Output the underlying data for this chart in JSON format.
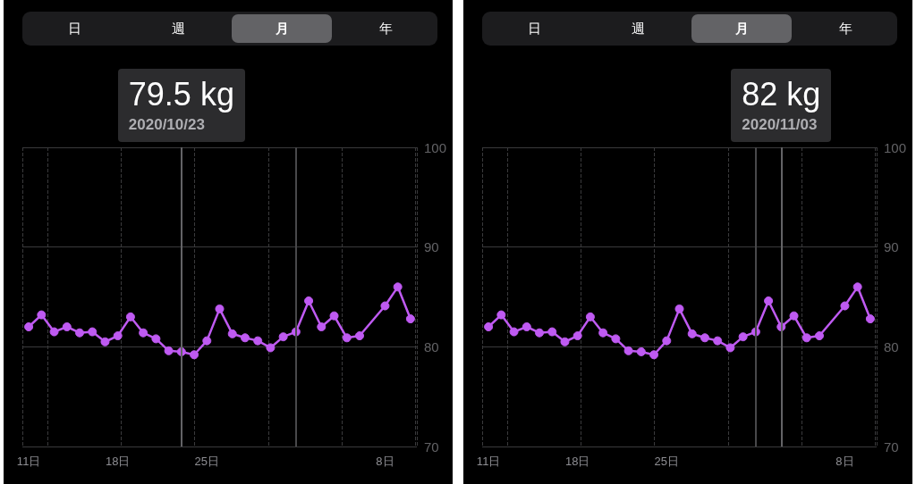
{
  "chart_data": [
    {
      "type": "line",
      "annotations": [
        "日",
        "週",
        "月",
        "年",
        "79.5 kg",
        "2020/10/23"
      ],
      "x": [
        "2020-10-11",
        "2020-10-12",
        "2020-10-13",
        "2020-10-14",
        "2020-10-15",
        "2020-10-16",
        "2020-10-17",
        "2020-10-18",
        "2020-10-19",
        "2020-10-20",
        "2020-10-21",
        "2020-10-22",
        "2020-10-23",
        "2020-10-24",
        "2020-10-25",
        "2020-10-26",
        "2020-10-27",
        "2020-10-28",
        "2020-10-29",
        "2020-10-30",
        "2020-10-31",
        "2020-11-01",
        "2020-11-02",
        "2020-11-03",
        "2020-11-04",
        "2020-11-05",
        "2020-11-06",
        "2020-11-08",
        "2020-11-09",
        "2020-11-10"
      ],
      "series": [
        {
          "color": "#bf5af2",
          "values": [
            82.0,
            83.2,
            81.5,
            82.0,
            81.4,
            81.5,
            80.5,
            81.1,
            83.0,
            81.4,
            80.8,
            79.6,
            79.5,
            79.2,
            80.6,
            83.8,
            81.3,
            80.9,
            80.6,
            79.9,
            81.0,
            81.5,
            84.6,
            82.0,
            83.1,
            80.9,
            81.1,
            84.1,
            86.0,
            82.8
          ]
        }
      ],
      "xlim": [
        "2020-10-10T12:00",
        "2020-11-10T12:00"
      ],
      "xticks": [
        {
          "value": "2020-10-11",
          "label": "11日"
        },
        {
          "value": "2020-10-18",
          "label": "18日"
        },
        {
          "value": "2020-10-25",
          "label": "25日"
        },
        {
          "value": "2020-11-08",
          "label": "8日"
        }
      ],
      "ylim": [
        70,
        100
      ],
      "yticks": [
        70,
        80,
        90,
        100
      ],
      "grid": true,
      "marker": "circle",
      "line_style": "solid",
      "ref_lines": [
        {
          "axis": "x",
          "value": "2020-11-01",
          "color": "#48484a"
        },
        {
          "axis": "x",
          "value": "2020-10-23",
          "color": "#636366"
        }
      ]
    },
    {
      "type": "line",
      "annotations": [
        "日",
        "週",
        "月",
        "年",
        "82 kg",
        "2020/11/03"
      ],
      "x": [
        "2020-10-11",
        "2020-10-12",
        "2020-10-13",
        "2020-10-14",
        "2020-10-15",
        "2020-10-16",
        "2020-10-17",
        "2020-10-18",
        "2020-10-19",
        "2020-10-20",
        "2020-10-21",
        "2020-10-22",
        "2020-10-23",
        "2020-10-24",
        "2020-10-25",
        "2020-10-26",
        "2020-10-27",
        "2020-10-28",
        "2020-10-29",
        "2020-10-30",
        "2020-10-31",
        "2020-11-01",
        "2020-11-02",
        "2020-11-03",
        "2020-11-04",
        "2020-11-05",
        "2020-11-06",
        "2020-11-08",
        "2020-11-09",
        "2020-11-10"
      ],
      "series": [
        {
          "color": "#bf5af2",
          "values": [
            82.0,
            83.2,
            81.5,
            82.0,
            81.4,
            81.5,
            80.5,
            81.1,
            83.0,
            81.4,
            80.8,
            79.6,
            79.5,
            79.2,
            80.6,
            83.8,
            81.3,
            80.9,
            80.6,
            79.9,
            81.0,
            81.5,
            84.6,
            82.0,
            83.1,
            80.9,
            81.1,
            84.1,
            86.0,
            82.8
          ]
        }
      ],
      "xlim": [
        "2020-10-10T12:00",
        "2020-11-10T12:00"
      ],
      "xticks": [
        {
          "value": "2020-10-11",
          "label": "11日"
        },
        {
          "value": "2020-10-18",
          "label": "18日"
        },
        {
          "value": "2020-10-25",
          "label": "25日"
        },
        {
          "value": "2020-11-08",
          "label": "8日"
        }
      ],
      "ylim": [
        70,
        100
      ],
      "yticks": [
        70,
        80,
        90,
        100
      ],
      "grid": true,
      "marker": "circle",
      "line_style": "solid",
      "ref_lines": [
        {
          "axis": "x",
          "value": "2020-11-01",
          "color": "#48484a"
        },
        {
          "axis": "x",
          "value": "2020-11-03",
          "color": "#636366"
        }
      ]
    }
  ]
}
